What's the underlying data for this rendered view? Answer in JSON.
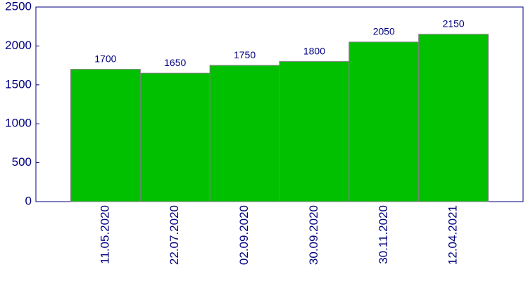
{
  "chart_data": {
    "type": "bar",
    "categories": [
      "11.05.2020",
      "22.07.2020",
      "02.09.2020",
      "30.09.2020",
      "30.11.2020",
      "12.04.2021"
    ],
    "values": [
      1700,
      1650,
      1750,
      1800,
      2050,
      2150
    ],
    "color": "#00c000",
    "ylim": [
      0,
      2500
    ],
    "yticks": [
      0,
      500,
      1000,
      1500,
      2000,
      2500
    ]
  }
}
